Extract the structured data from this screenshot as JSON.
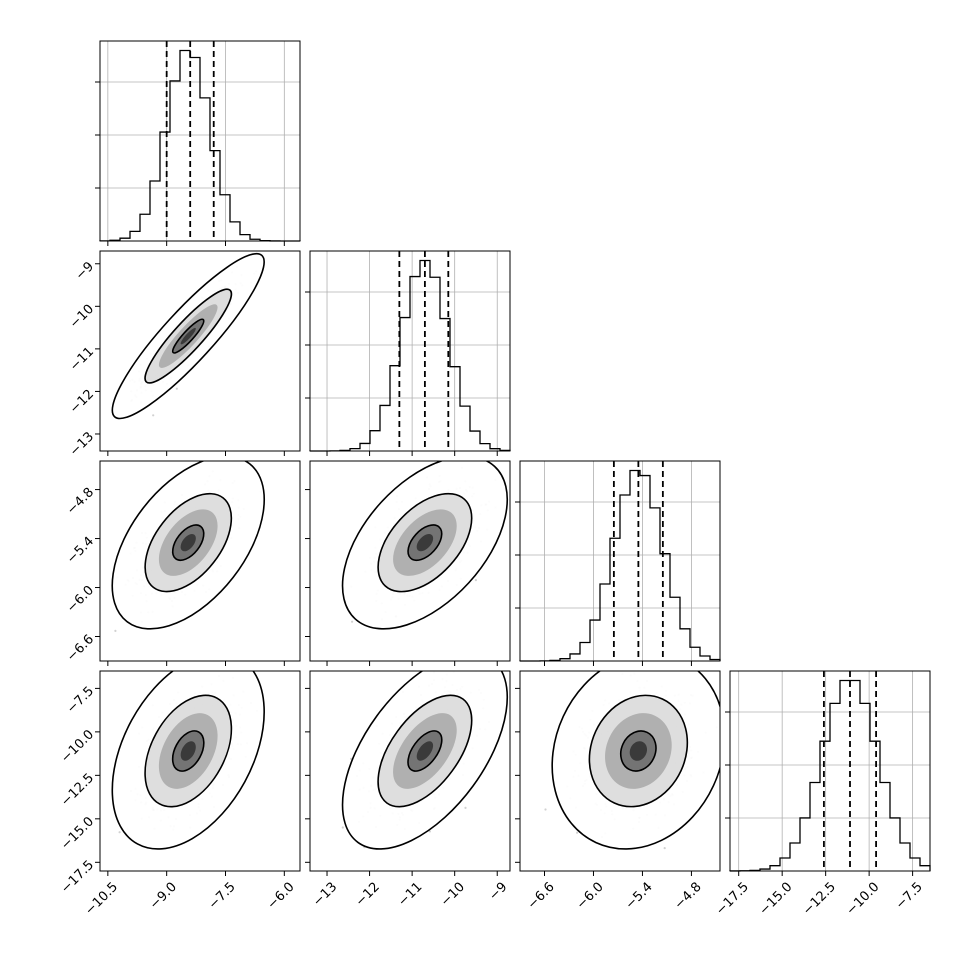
{
  "chart_data": {
    "type": "corner",
    "parameters": 4,
    "axes": [
      {
        "range": [
          -10.7,
          -5.6
        ],
        "ticks": [
          -10.5,
          -9.0,
          -7.5,
          -6.0
        ],
        "tick_labels": [
          "−10.5",
          "−9.0",
          "−7.5",
          "−6.0"
        ]
      },
      {
        "range": [
          -13.4,
          -8.7
        ],
        "ticks": [
          -13,
          -12,
          -11,
          -10,
          -9
        ],
        "tick_labels": [
          "−13",
          "−12",
          "−11",
          "−10",
          "−9"
        ]
      },
      {
        "range": [
          -6.9,
          -4.45
        ],
        "ticks": [
          -6.6,
          -6.0,
          -5.4,
          -4.8
        ],
        "tick_labels": [
          "−6.6",
          "−6.0",
          "−5.4",
          "−4.8"
        ]
      },
      {
        "range": [
          -18.0,
          -6.5
        ],
        "ticks": [
          -17.5,
          -15.0,
          -12.5,
          -10.0,
          -7.5
        ],
        "tick_labels": [
          "−17.5",
          "−15.0",
          "−12.5",
          "−10.0",
          "−7.5"
        ]
      }
    ],
    "marginals": [
      {
        "mean": -8.45,
        "sd": 0.55,
        "quantiles": [
          -9.0,
          -8.4,
          -7.8
        ]
      },
      {
        "mean": -10.7,
        "sd": 0.55,
        "quantiles": [
          -11.3,
          -10.7,
          -10.15
        ]
      },
      {
        "mean": -5.45,
        "sd": 0.3,
        "quantiles": [
          -5.75,
          -5.45,
          -5.15
        ]
      },
      {
        "mean": -11.1,
        "sd": 1.6,
        "quantiles": [
          -12.6,
          -11.1,
          -9.6
        ]
      }
    ],
    "correlations": {
      "1-0": 0.9,
      "2-0": 0.5,
      "2-1": 0.5,
      "3-0": 0.4,
      "3-1": 0.55,
      "3-2": 0.15
    },
    "contour_levels": [
      "1-sigma",
      "2-sigma",
      "3-sigma"
    ],
    "grid": true
  }
}
